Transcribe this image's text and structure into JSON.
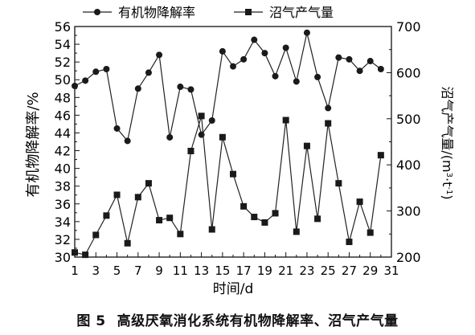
{
  "chart_data": {
    "type": "line",
    "xlabel": "时间/d",
    "ylabel_left": "有机物降解率/%",
    "ylabel_right_parts": [
      "沼气产气量/(m",
      "3",
      "·t",
      "-1",
      ")"
    ],
    "x": [
      1,
      2,
      3,
      4,
      5,
      6,
      7,
      8,
      9,
      10,
      11,
      12,
      13,
      14,
      15,
      16,
      17,
      18,
      19,
      20,
      21,
      22,
      23,
      24,
      25,
      26,
      27,
      28,
      29,
      30
    ],
    "xlim": [
      1,
      31
    ],
    "x_ticks": [
      1,
      3,
      5,
      7,
      9,
      11,
      13,
      15,
      17,
      19,
      21,
      23,
      25,
      27,
      29,
      31
    ],
    "y_left_lim": [
      30,
      56
    ],
    "y_left_ticks": [
      30,
      32,
      34,
      36,
      38,
      40,
      42,
      44,
      46,
      48,
      50,
      52,
      54,
      56
    ],
    "y_right_lim": [
      200,
      700
    ],
    "y_right_ticks": [
      200,
      300,
      400,
      500,
      600,
      700
    ],
    "series": [
      {
        "name": "有机物降解率",
        "marker": "circle",
        "axis": "left",
        "values": [
          49.3,
          49.9,
          50.9,
          51.2,
          44.5,
          43.1,
          49.0,
          50.8,
          52.8,
          43.5,
          49.2,
          48.9,
          43.8,
          45.4,
          53.2,
          51.5,
          52.3,
          54.5,
          53.0,
          50.4,
          53.6,
          49.8,
          55.3,
          50.3,
          46.8,
          52.5,
          52.3,
          51.0,
          52.1,
          51.2
        ]
      },
      {
        "name": "沼气产气量",
        "marker": "square",
        "axis": "right",
        "values": [
          210,
          205,
          248,
          290,
          335,
          230,
          330,
          360,
          280,
          285,
          250,
          430,
          506,
          260,
          460,
          380,
          310,
          287,
          275,
          295,
          497,
          255,
          441,
          283,
          490,
          360,
          233,
          320,
          253,
          421
        ]
      }
    ]
  },
  "caption": {
    "figure_number": "图 5",
    "text": "高级厌氧消化系统有机物降解率、沼气产气量"
  }
}
